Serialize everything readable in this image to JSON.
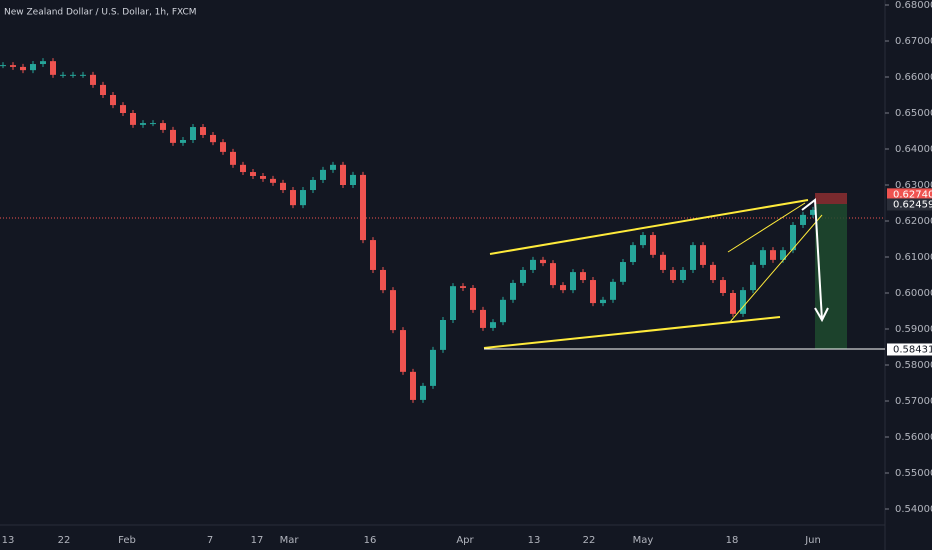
{
  "chart_data": {
    "type": "candlestick",
    "title": "New Zealand Dollar / U.S. Dollar, 1h, FXCM",
    "up_color": "#26a69a",
    "down_color": "#ef5350",
    "values": [
      0.6633,
      0.6628,
      0.6619,
      0.6636,
      0.6644,
      0.6606,
      0.6606,
      0.6606,
      0.6606,
      0.6578,
      0.655,
      0.6522,
      0.65,
      0.6467,
      0.6472,
      0.6472,
      0.6453,
      0.6417,
      0.6425,
      0.6461,
      0.6439,
      0.6419,
      0.6392,
      0.6356,
      0.6336,
      0.6325,
      0.6317,
      0.6306,
      0.6286,
      0.6244,
      0.6286,
      0.6314,
      0.6342,
      0.6356,
      0.63,
      0.6328,
      0.6147,
      0.6064,
      0.6008,
      0.5897,
      0.5781,
      0.5703,
      0.5742,
      0.5842,
      0.5925,
      0.6019,
      0.6014,
      0.5953,
      0.5903,
      0.5919,
      0.5981,
      0.6028,
      0.6064,
      0.6092,
      0.6083,
      0.6022,
      0.6008,
      0.6058,
      0.6036,
      0.5972,
      0.5981,
      0.6031,
      0.6086,
      0.6133,
      0.6161,
      0.6106,
      0.6064,
      0.6036,
      0.6064,
      0.6133,
      0.6078,
      0.6036,
      0.6,
      0.5942,
      0.6008,
      0.6078,
      0.6119,
      0.6092,
      0.6119,
      0.6189,
      0.6217,
      0.6231
    ],
    "x_labels": [
      "13",
      "22",
      "Feb",
      "7",
      "17",
      "Mar",
      "16",
      "Apr",
      "13",
      "22",
      "May",
      "18",
      "Jun"
    ],
    "ylim": [
      0.54,
      0.68
    ],
    "yticks": [
      {
        "value": 0.54,
        "label": "0.54000"
      },
      {
        "value": 0.55,
        "label": "0.55000"
      },
      {
        "value": 0.56,
        "label": "0.56000"
      },
      {
        "value": 0.57,
        "label": "0.57000"
      },
      {
        "value": 0.58,
        "label": "0.58000"
      },
      {
        "value": 0.59,
        "label": "0.59000"
      },
      {
        "value": 0.6,
        "label": "0.60000"
      },
      {
        "value": 0.61,
        "label": "0.61000"
      },
      {
        "value": 0.62,
        "label": "0.62000"
      },
      {
        "value": 0.63,
        "label": "0.63000"
      },
      {
        "value": 0.64,
        "label": "0.64000"
      },
      {
        "value": 0.65,
        "label": "0.65000"
      },
      {
        "value": 0.66,
        "label": "0.66000"
      },
      {
        "value": 0.67,
        "label": "0.67000"
      },
      {
        "value": 0.68,
        "label": "0.68000"
      }
    ],
    "price_labels": [
      {
        "value": 0.6274,
        "label": "0.62740",
        "color": "#ef5350"
      },
      {
        "value": 0.62459,
        "label": "0.62459",
        "color": "#2a2e39"
      },
      {
        "value": 0.58431,
        "label": "0.58431",
        "color": "#ffffff"
      }
    ]
  }
}
